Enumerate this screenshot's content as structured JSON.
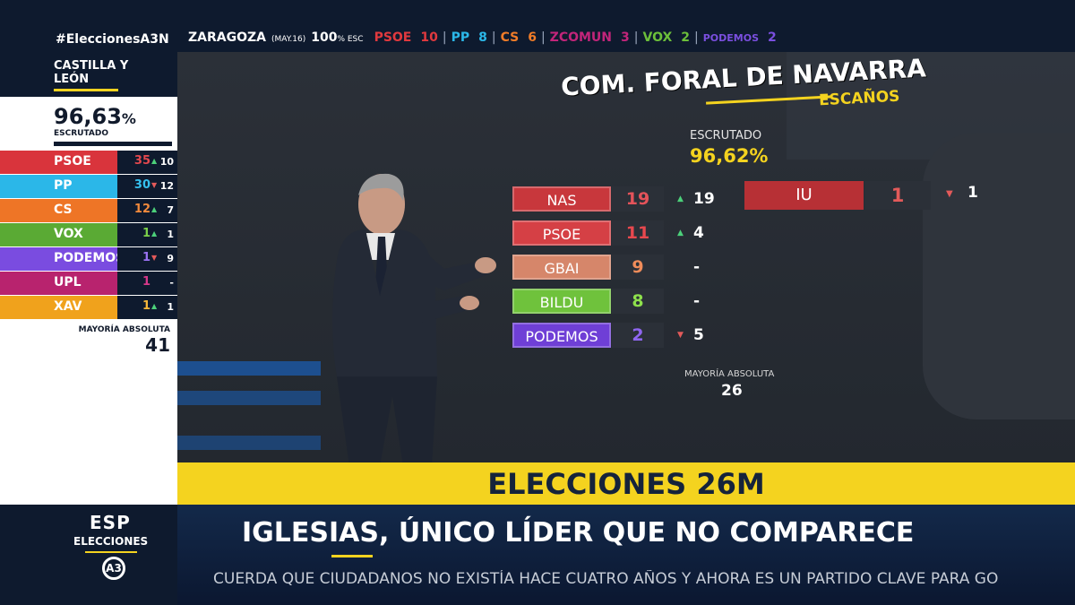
{
  "top": {
    "hashtag": "#EleccionesA3N",
    "city": "ZARAGOZA",
    "date": "(MAY.16)",
    "percent": "100",
    "percent_suffix": "% ESC",
    "parties": [
      {
        "name": "PSOE",
        "seats": "10",
        "color": "#e0393e"
      },
      {
        "name": "PP",
        "seats": "8",
        "color": "#2bb7e8"
      },
      {
        "name": "CS",
        "seats": "6",
        "color": "#f07c28"
      },
      {
        "name": "ZCOMUN",
        "seats": "3",
        "color": "#c2257a"
      },
      {
        "name": "VOX",
        "seats": "2",
        "color": "#6cbf3a"
      },
      {
        "name": "PODEMOS",
        "seats": "2",
        "color": "#7b4fe0"
      }
    ]
  },
  "sidebar": {
    "region": "CASTILLA Y LEÓN",
    "scrutinized_value": "96,63",
    "scrutinized_unit": "%",
    "scrutinized_label": "ESCRUTADO",
    "rows": [
      {
        "party": "PSOE",
        "seats": "35",
        "trend": "up",
        "arrow": "▲",
        "change": "10",
        "color": "#d9343c",
        "seat_color": "#e3484e"
      },
      {
        "party": "PP",
        "seats": "30",
        "trend": "down",
        "arrow": "▼",
        "change": "12",
        "color": "#2bb7e8",
        "seat_color": "#35c0ee"
      },
      {
        "party": "CS",
        "seats": "12",
        "trend": "up",
        "arrow": "▲",
        "change": "7",
        "color": "#ee7526",
        "seat_color": "#f28a3c"
      },
      {
        "party": "VOX",
        "seats": "1",
        "trend": "up",
        "arrow": "▲",
        "change": "1",
        "color": "#5aaa34",
        "seat_color": "#7bd04a"
      },
      {
        "party": "PODEMOS",
        "seats": "1",
        "trend": "down",
        "arrow": "▼",
        "change": "9",
        "color": "#7a4ce0",
        "seat_color": "#9a72f2"
      },
      {
        "party": "UPL",
        "seats": "1",
        "trend": "none",
        "arrow": "",
        "change": "-",
        "color": "#b8236e",
        "seat_color": "#d6398a"
      },
      {
        "party": "XAV",
        "seats": "1",
        "trend": "up",
        "arrow": "▲",
        "change": "1",
        "color": "#f0a21c",
        "seat_color": "#f6b73a"
      }
    ],
    "majority_label": "MAYORÍA ABSOLUTA",
    "majority_value": "41"
  },
  "board": {
    "title": "COM. FORAL DE NAVARRA",
    "subtitle": "ESCAÑOS",
    "scrutinized_label": "ESCRUTADO",
    "scrutinized_value": "96,62%",
    "rows": [
      {
        "party": "NAS",
        "seats": "19",
        "trend": "up",
        "arrow": "▲",
        "change": "19",
        "color": "#c8373c",
        "seat_color": "#e4535a"
      },
      {
        "party": "PSOE",
        "seats": "11",
        "trend": "up",
        "arrow": "▲",
        "change": "4",
        "color": "#d54045",
        "seat_color": "#e8484e"
      },
      {
        "party": "GBAI",
        "seats": "9",
        "trend": "none",
        "arrow": "",
        "change": "-",
        "color": "#d6866a",
        "seat_color": "#f08c5a"
      },
      {
        "party": "BILDU",
        "seats": "8",
        "trend": "none",
        "arrow": "",
        "change": "-",
        "color": "#6fc23c",
        "seat_color": "#8ee04c"
      },
      {
        "party": "PODEMOS",
        "seats": "2",
        "trend": "down",
        "arrow": "▼",
        "change": "5",
        "color": "#6f3fd6",
        "seat_color": "#8f66f0"
      }
    ],
    "iu": {
      "party": "IU",
      "seats": "1",
      "arrow": "▼",
      "change": "1",
      "color": "#b73035"
    },
    "majority_label": "MAYORÍA ABSOLUTA",
    "majority_value": "26"
  },
  "lower": {
    "band_title": "ELECCIONES 26M",
    "headline": "IGLESIAS, ÚNICO LÍDER QUE NO COMPARECE",
    "ticker": "CUERDA QUE CIUDADANOS NO EXISTÍA HACE CUATRO AÑOS Y AHORA ES UN PARTIDO CLAVE PARA GO",
    "logo_main": "ESP",
    "logo_sub": "ELECCIONES",
    "logo_mark": "A3"
  },
  "colors": {
    "accent_yellow": "#f4d31f",
    "navy": "#0e1a2e",
    "up_arrow": "#4cd07a",
    "down_arrow": "#e35a5a"
  }
}
